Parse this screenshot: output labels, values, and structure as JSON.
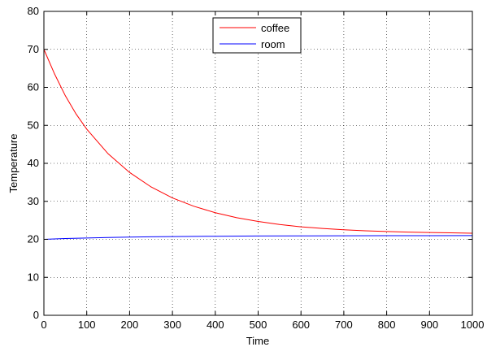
{
  "chart_data": {
    "type": "line",
    "title": "",
    "xlabel": "Time",
    "ylabel": "Temperature",
    "xlim": [
      0,
      1000
    ],
    "ylim": [
      0,
      80
    ],
    "xticks": [
      0,
      100,
      200,
      300,
      400,
      500,
      600,
      700,
      800,
      900,
      1000
    ],
    "yticks": [
      0,
      10,
      20,
      30,
      40,
      50,
      60,
      70,
      80
    ],
    "grid": true,
    "legend": "top-center",
    "series": [
      {
        "name": "coffee",
        "color": "#ff0000",
        "x": [
          0,
          25,
          50,
          75,
          100,
          150,
          200,
          250,
          300,
          350,
          400,
          450,
          500,
          550,
          600,
          650,
          700,
          750,
          800,
          850,
          900,
          950,
          1000
        ],
        "y": [
          70,
          63.5,
          57.8,
          53.0,
          49.0,
          42.5,
          37.6,
          33.8,
          30.9,
          28.7,
          27.0,
          25.7,
          24.7,
          23.9,
          23.3,
          22.85,
          22.5,
          22.25,
          22.05,
          21.9,
          21.8,
          21.7,
          21.6
        ]
      },
      {
        "name": "room",
        "color": "#0000ff",
        "x": [
          0,
          50,
          100,
          150,
          200,
          250,
          300,
          400,
          500,
          600,
          700,
          800,
          900,
          1000
        ],
        "y": [
          20,
          20.2,
          20.35,
          20.48,
          20.58,
          20.66,
          20.72,
          20.81,
          20.87,
          20.91,
          20.94,
          20.96,
          20.97,
          20.98
        ]
      }
    ]
  }
}
